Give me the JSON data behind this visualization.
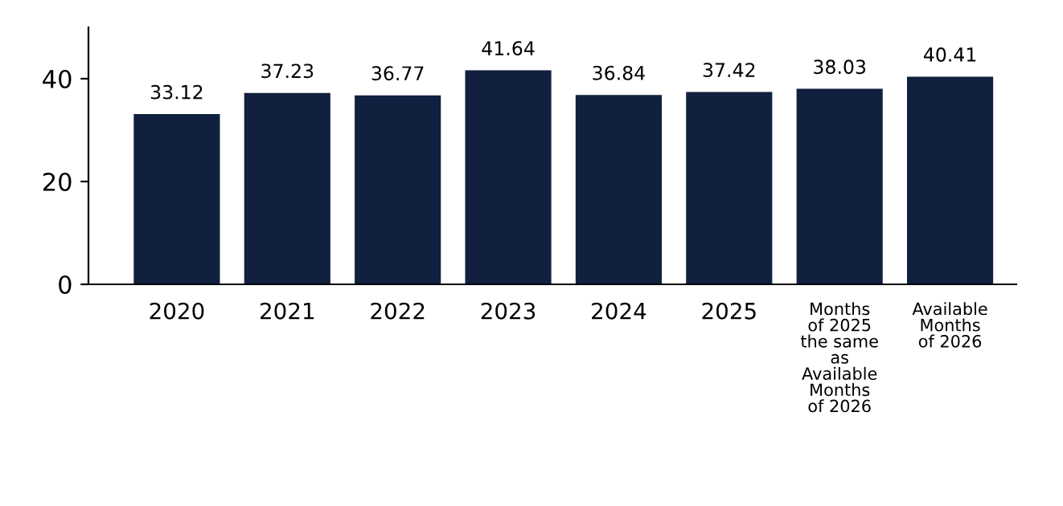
{
  "chart_data": {
    "type": "bar",
    "categories": [
      "2020",
      "2021",
      "2022",
      "2023",
      "2024",
      "2025",
      "Months\nof 2025\nthe same\nas\nAvailable\nMonths\nof 2026",
      "Available\nMonths\nof 2026"
    ],
    "values": [
      33.12,
      37.23,
      36.77,
      41.64,
      36.84,
      37.42,
      38.03,
      40.41
    ],
    "color": "#11203f",
    "ylim": [
      0,
      50
    ],
    "yticks": [
      0,
      20,
      40
    ],
    "data_labels": true,
    "grid": false,
    "legend": false
  }
}
